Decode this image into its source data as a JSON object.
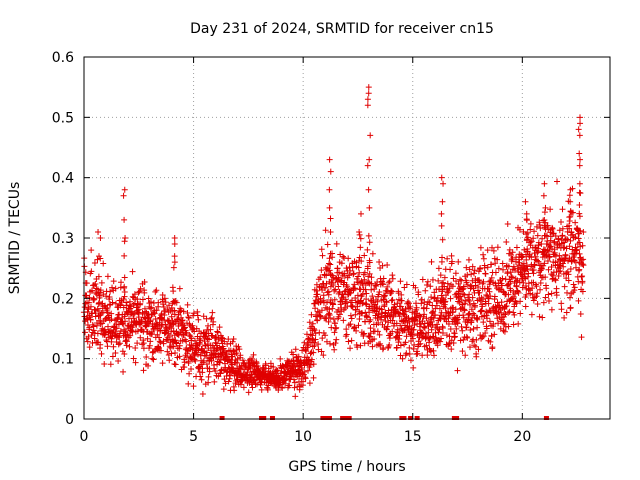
{
  "chart_data": {
    "type": "scatter",
    "title": "Day 231 of 2024, SRMTID for receiver cn15",
    "xlabel": "GPS time / hours",
    "ylabel": "SRMTID / TECUs",
    "xlim": [
      0,
      24
    ],
    "ylim": [
      0,
      0.6
    ],
    "xticks": [
      0,
      5,
      10,
      15,
      20
    ],
    "yticks": [
      0,
      0.1,
      0.2,
      0.3,
      0.4,
      0.5,
      0.6
    ],
    "xtick_labels": [
      "0",
      "5",
      "10",
      "15",
      "20"
    ],
    "ytick_labels": [
      "0",
      "0.1",
      "0.2",
      "0.3",
      "0.4",
      "0.5",
      "0.6"
    ],
    "grid": true,
    "marker": "+",
    "color": "#e00000",
    "envelope": {
      "hours": [
        0,
        0.5,
        1,
        2,
        3,
        4,
        5,
        6,
        7,
        8,
        9,
        10,
        10.5,
        11,
        12,
        13,
        14,
        15,
        15.5,
        16,
        16.5,
        17,
        18,
        19,
        20,
        21,
        22,
        22.8
      ],
      "median": [
        0.18,
        0.18,
        0.16,
        0.17,
        0.16,
        0.15,
        0.12,
        0.11,
        0.08,
        0.07,
        0.07,
        0.085,
        0.15,
        0.22,
        0.2,
        0.2,
        0.18,
        0.15,
        0.16,
        0.18,
        0.2,
        0.18,
        0.19,
        0.2,
        0.24,
        0.27,
        0.27,
        0.27
      ],
      "spread": [
        0.06,
        0.07,
        0.06,
        0.06,
        0.05,
        0.05,
        0.05,
        0.05,
        0.03,
        0.02,
        0.02,
        0.03,
        0.06,
        0.09,
        0.07,
        0.07,
        0.06,
        0.05,
        0.06,
        0.07,
        0.07,
        0.06,
        0.07,
        0.07,
        0.07,
        0.07,
        0.08,
        0.08
      ]
    },
    "spikes": [
      {
        "hour": 0.7,
        "values": [
          0.3,
          0.31,
          0.27
        ]
      },
      {
        "hour": 1.85,
        "values": [
          0.38,
          0.37,
          0.33,
          0.3
        ]
      },
      {
        "hour": 4.1,
        "values": [
          0.3,
          0.29,
          0.27,
          0.26
        ]
      },
      {
        "hour": 11.2,
        "values": [
          0.43,
          0.41,
          0.38,
          0.35
        ]
      },
      {
        "hour": 12.6,
        "values": [
          0.34,
          0.31
        ]
      },
      {
        "hour": 13.0,
        "values": [
          0.55,
          0.54,
          0.53,
          0.52,
          0.47,
          0.43,
          0.42,
          0.38,
          0.35
        ]
      },
      {
        "hour": 16.35,
        "values": [
          0.4,
          0.39,
          0.36,
          0.34,
          0.32
        ]
      },
      {
        "hour": 20.2,
        "values": [
          0.36,
          0.34
        ]
      },
      {
        "hour": 21.0,
        "values": [
          0.39,
          0.37,
          0.35
        ]
      },
      {
        "hour": 22.2,
        "values": [
          0.38,
          0.36
        ]
      },
      {
        "hour": 22.6,
        "values": [
          0.5,
          0.49,
          0.48,
          0.47,
          0.44,
          0.43,
          0.42,
          0.39
        ]
      }
    ],
    "zero_values_at_hours": [
      6.3,
      8.1,
      8.2,
      8.6,
      10.9,
      11.0,
      11.1,
      11.2,
      11.8,
      12.0,
      12.1,
      14.5,
      14.6,
      14.9,
      15.2,
      16.9,
      17.0,
      21.1
    ]
  }
}
